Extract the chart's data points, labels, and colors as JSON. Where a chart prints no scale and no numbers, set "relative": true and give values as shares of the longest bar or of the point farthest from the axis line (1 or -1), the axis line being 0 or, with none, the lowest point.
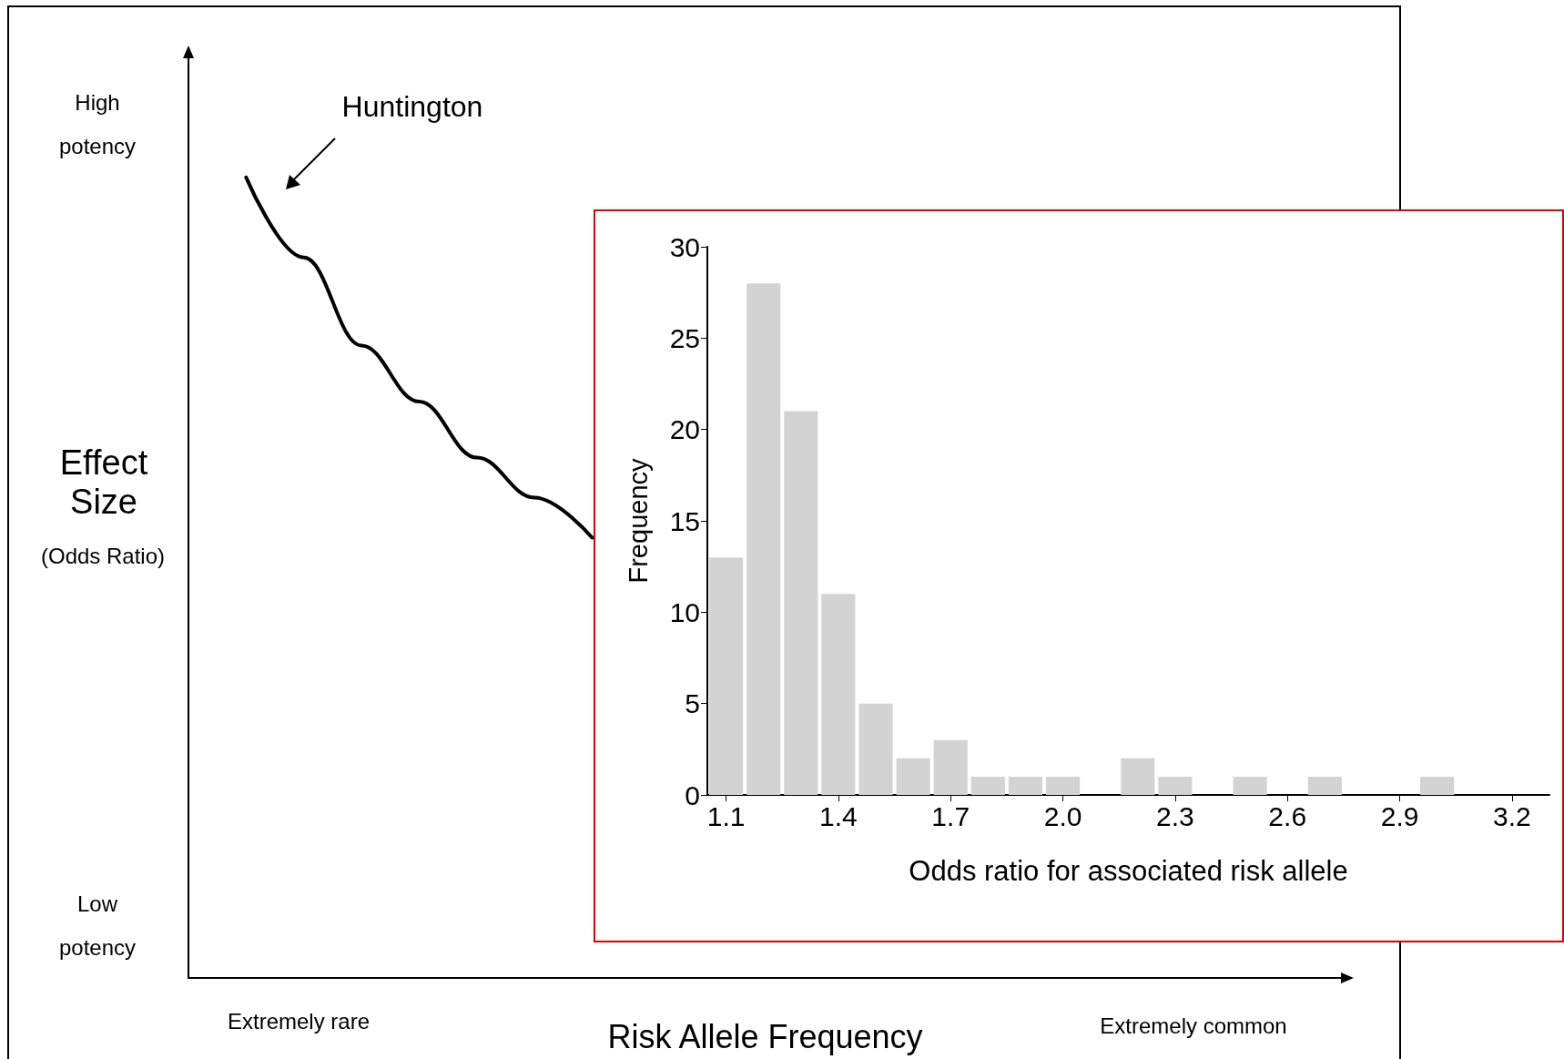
{
  "chart_data": [
    {
      "type": "line",
      "relative": true,
      "xlabel": "Risk Allele Frequency",
      "ylabel": "Effect Size",
      "categories": [
        null,
        null,
        null,
        null,
        null,
        null,
        null,
        null,
        null,
        null,
        null,
        null,
        null,
        null,
        null,
        null,
        null,
        null,
        null,
        null,
        null
      ],
      "series": [
        {
          "color": "#000000",
          "values": [
            null,
            1,
            0.9,
            0.79,
            0.72,
            0.65,
            0.6,
            0.55,
            null,
            null,
            null,
            null,
            null,
            null,
            null,
            null,
            null,
            null,
            null,
            null,
            null
          ]
        }
      ],
      "annotations": [
        "(Odds Ratio)",
        "High potency",
        "Low potency",
        "Extremely rare",
        "Extremely common",
        "Huntington"
      ],
      "grid": false
    },
    {
      "type": "histogram",
      "xlabel": "Odds ratio for associated risk allele",
      "ylabel": "Frequency",
      "bins": [
        1.05,
        1.15,
        1.25,
        1.35,
        1.45,
        1.55,
        1.65,
        1.75,
        1.85,
        1.95,
        2.05,
        2.15,
        2.25,
        2.35,
        2.45,
        2.55,
        2.65,
        2.75,
        2.85,
        2.95,
        3.05
      ],
      "values": [
        13,
        28,
        21,
        11,
        5,
        2,
        3,
        1,
        1,
        1,
        0,
        2,
        1,
        0,
        1,
        0,
        1,
        0,
        0,
        1
      ],
      "color": "#d3d3d3",
      "xlim": [
        1.05,
        3.3
      ],
      "xticks": [
        1.1,
        1.4,
        1.7,
        {
          "value": 2,
          "label": "2.0"
        },
        2.3,
        2.6,
        2.9,
        3.2
      ],
      "ylim": [
        0,
        30
      ],
      "yticks": [
        0,
        5,
        10,
        15,
        20,
        25,
        30
      ],
      "grid": false
    }
  ]
}
